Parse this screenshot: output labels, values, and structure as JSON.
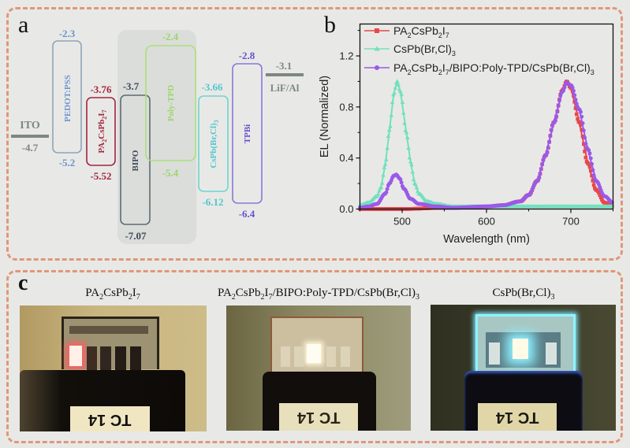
{
  "panels": {
    "a": "a",
    "b": "b",
    "c": "c"
  },
  "energy_diagram": {
    "electrodes": [
      {
        "name": "ITO",
        "level": "-4.7",
        "color": "#7d8782"
      },
      {
        "name": "LiF/Al",
        "level": "-3.1",
        "color": "#7d8782"
      }
    ],
    "layers": [
      {
        "name": "PEDOT:PSS",
        "lumo": "-2.3",
        "homo": "-5.2",
        "color": "#6e93cf"
      },
      {
        "name": "PA2CsPb2I7",
        "lumo": "-3.76",
        "homo": "-5.52",
        "color": "#a3243f"
      },
      {
        "name": "BIPO",
        "lumo": "-3.7",
        "homo": "-7.07",
        "color": "#3d4a57"
      },
      {
        "name": "Poly-TPD",
        "lumo": "-2.4",
        "homo": "-5.4",
        "color": "#9bd66a"
      },
      {
        "name": "CsPb(Br,Cl)3",
        "lumo": "-3.66",
        "homo": "-6.12",
        "color": "#4fc6cf"
      },
      {
        "name": "TPBi",
        "lumo": "-2.8",
        "homo": "-6.4",
        "color": "#6a4fd0"
      }
    ],
    "shaded_group": "BIPO:Poly-TPD"
  },
  "chart_data": {
    "type": "line",
    "title": "",
    "xlabel": "Wavelength (nm)",
    "ylabel": "EL (Normalized)",
    "xlim": [
      450,
      750
    ],
    "ylim": [
      0,
      1.45
    ],
    "xticks": [
      500,
      600,
      700
    ],
    "yticks": [
      0.0,
      0.4,
      0.8,
      1.2
    ],
    "xtick_labels": [
      "500",
      "600",
      "700"
    ],
    "ytick_labels": [
      "0.0",
      "0.4",
      "0.8",
      "1.2"
    ],
    "grid": false,
    "legend_position": "top-left",
    "series": [
      {
        "name": "PA2CsPb2I7",
        "color": "#e8484a",
        "marker": "square",
        "x": [
          450,
          500,
          550,
          600,
          620,
          640,
          650,
          660,
          670,
          680,
          690,
          695,
          700,
          710,
          720,
          730,
          740,
          750
        ],
        "y": [
          0.0,
          0.0,
          0.01,
          0.02,
          0.03,
          0.06,
          0.11,
          0.22,
          0.42,
          0.68,
          0.93,
          1.0,
          0.95,
          0.68,
          0.36,
          0.15,
          0.05,
          0.02
        ]
      },
      {
        "name": "CsPb(Br,Cl)3",
        "color": "#72e0be",
        "marker": "triangle",
        "x": [
          450,
          460,
          470,
          475,
          480,
          485,
          490,
          494,
          498,
          505,
          510,
          515,
          520,
          530,
          540,
          560,
          600,
          650,
          700,
          750
        ],
        "y": [
          0.03,
          0.05,
          0.1,
          0.17,
          0.35,
          0.62,
          0.9,
          1.0,
          0.92,
          0.6,
          0.37,
          0.2,
          0.12,
          0.06,
          0.04,
          0.02,
          0.02,
          0.02,
          0.02,
          0.02
        ]
      },
      {
        "name": "PA2CsPb2I7/BIPO:Poly-TPD/CsPb(Br,Cl)3",
        "color": "#9b59e8",
        "marker": "circle",
        "x": [
          450,
          460,
          470,
          480,
          485,
          490,
          493,
          497,
          502,
          510,
          520,
          540,
          560,
          600,
          620,
          640,
          650,
          660,
          670,
          680,
          690,
          695,
          700,
          710,
          720,
          730,
          740,
          750
        ],
        "y": [
          0.01,
          0.02,
          0.04,
          0.12,
          0.2,
          0.26,
          0.27,
          0.24,
          0.16,
          0.08,
          0.04,
          0.02,
          0.01,
          0.02,
          0.03,
          0.06,
          0.11,
          0.22,
          0.42,
          0.68,
          0.92,
          0.99,
          0.97,
          0.78,
          0.47,
          0.22,
          0.1,
          0.05
        ]
      }
    ],
    "legend_entries": [
      {
        "base": "PA",
        "sub1": "2",
        "mid": "CsPb",
        "sub2": "2",
        "mid2": "I",
        "sub3": "7",
        "rest": "",
        "sub4": ""
      },
      {
        "base": "CsPb(Br,Cl)",
        "sub1": "3",
        "mid": "",
        "sub2": "",
        "mid2": "",
        "sub3": "",
        "rest": "",
        "sub4": ""
      },
      {
        "base": "PA",
        "sub1": "2",
        "mid": "CsPb",
        "sub2": "2",
        "mid2": "I",
        "sub3": "7",
        "rest": "/BIPO:Poly-TPD/CsPb(Br,Cl)",
        "sub4": "3"
      }
    ]
  },
  "photos": [
    {
      "title": "PA2CsPb2I7",
      "label": "TC 14",
      "emission": "red",
      "glow_color": "#ff6a6a"
    },
    {
      "title": "PA2CsPb2I7/BIPO:Poly-TPD/CsPb(Br,Cl)3",
      "label": "TC 14",
      "emission": "white",
      "glow_color": "#fffbe8"
    },
    {
      "title": "CsPb(Br,Cl)3",
      "label": "TC 14",
      "emission": "blue",
      "glow_color": "#8ff0ff"
    }
  ]
}
